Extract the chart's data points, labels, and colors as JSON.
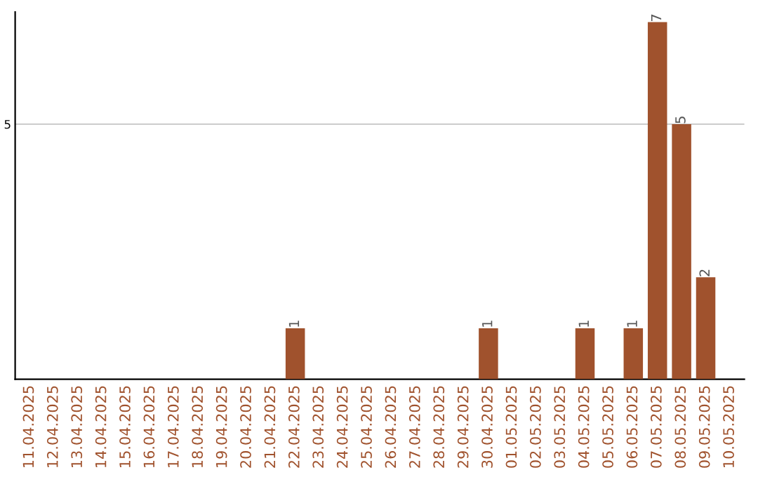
{
  "chart_data": {
    "type": "bar",
    "categories": [
      "11.04.2025",
      "12.04.2025",
      "13.04.2025",
      "14.04.2025",
      "15.04.2025",
      "16.04.2025",
      "17.04.2025",
      "18.04.2025",
      "19.04.2025",
      "20.04.2025",
      "21.04.2025",
      "22.04.2025",
      "23.04.2025",
      "24.04.2025",
      "25.04.2025",
      "26.04.2025",
      "27.04.2025",
      "28.04.2025",
      "29.04.2025",
      "30.04.2025",
      "01.05.2025",
      "02.05.2025",
      "03.05.2025",
      "04.05.2025",
      "05.05.2025",
      "06.05.2025",
      "07.05.2025",
      "08.05.2025",
      "09.05.2025",
      "10.05.2025"
    ],
    "values": [
      0,
      0,
      0,
      0,
      0,
      0,
      0,
      0,
      0,
      0,
      0,
      1,
      0,
      0,
      0,
      0,
      0,
      0,
      0,
      1,
      0,
      0,
      0,
      1,
      0,
      1,
      7,
      5,
      2,
      0
    ],
    "value_labels": [
      null,
      null,
      null,
      null,
      null,
      null,
      null,
      null,
      null,
      null,
      null,
      "1",
      null,
      null,
      null,
      null,
      null,
      null,
      null,
      "1",
      null,
      null,
      null,
      "1",
      null,
      "1",
      "7",
      "5",
      "2",
      null
    ],
    "color": "#a0522d",
    "ylim": [
      0,
      7.2
    ],
    "yticks": [
      5
    ],
    "grid": "y",
    "legend": false
  }
}
